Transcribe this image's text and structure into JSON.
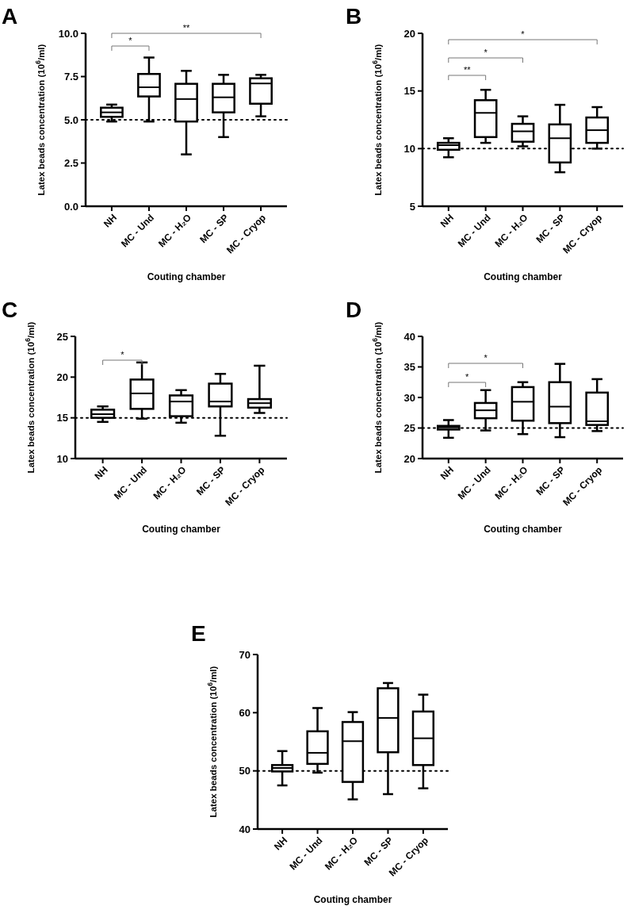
{
  "chart_data": [
    {
      "type": "box",
      "title": "A",
      "xlabel": "Couting chamber",
      "ylabel": "Latex beads concentration (10$^{6}$/ml)",
      "categories": [
        "NH",
        "MC - Und",
        "MC - H₂O",
        "MC - SP",
        "MC - Cryop"
      ],
      "ylim": [
        0,
        10
      ],
      "yticks": [
        {
          "value": 0,
          "label": "0.0"
        },
        2.5,
        {
          "value": 5,
          "label": "5.0"
        },
        7.5,
        {
          "value": 10,
          "label": "10.0"
        }
      ],
      "boxes": [
        {
          "low": 4.9,
          "q1": 5.17,
          "median": 5.43,
          "q3": 5.7,
          "high": 5.88
        },
        {
          "low": 4.9,
          "q1": 6.35,
          "median": 6.88,
          "q3": 7.65,
          "high": 8.6
        },
        {
          "low": 3.0,
          "q1": 4.9,
          "median": 6.2,
          "q3": 7.08,
          "high": 7.83
        },
        {
          "low": 4.0,
          "q1": 5.43,
          "median": 6.3,
          "q3": 7.08,
          "high": 7.6
        },
        {
          "low": 5.2,
          "q1": 5.93,
          "median": 7.1,
          "q3": 7.4,
          "high": 7.6
        }
      ],
      "ref_lines": [
        {
          "axis": "y",
          "value": 5,
          "color": "#000000",
          "line_style": "dotted"
        }
      ],
      "annotations": [
        "*",
        "**"
      ]
    },
    {
      "type": "box",
      "title": "B",
      "xlabel": "Couting chamber",
      "ylabel": "Latex beads concentration (10$^{6}$/ml)",
      "categories": [
        "NH",
        "MC - Und",
        "MC - H₂O",
        "MC - SP",
        "MC - Cryop"
      ],
      "ylim": [
        5,
        20
      ],
      "yticks": [
        5,
        10,
        15,
        20
      ],
      "boxes": [
        {
          "low": 9.25,
          "q1": 9.9,
          "median": 10.3,
          "q3": 10.5,
          "high": 10.9
        },
        {
          "low": 10.5,
          "q1": 11.0,
          "median": 13.1,
          "q3": 14.2,
          "high": 15.1
        },
        {
          "low": 10.2,
          "q1": 10.6,
          "median": 11.5,
          "q3": 12.15,
          "high": 12.8
        },
        {
          "low": 7.95,
          "q1": 8.8,
          "median": 10.9,
          "q3": 12.1,
          "high": 13.8
        },
        {
          "low": 10.0,
          "q1": 10.5,
          "median": 11.6,
          "q3": 12.7,
          "high": 13.6
        }
      ],
      "ref_lines": [
        {
          "axis": "y",
          "value": 10,
          "color": "#000000",
          "line_style": "dotted"
        }
      ],
      "annotations": [
        "**",
        "*",
        "*"
      ]
    },
    {
      "type": "box",
      "title": "C",
      "xlabel": "Couting chamber",
      "ylabel": "Latex beads concentration (10$^{6}$/ml)",
      "categories": [
        "NH",
        "MC - Und",
        "MC - H₂O",
        "MC - SP",
        "MC - Cryop"
      ],
      "ylim": [
        10,
        25
      ],
      "yticks": [
        10,
        15,
        20,
        25
      ],
      "boxes": [
        {
          "low": 14.5,
          "q1": 15.0,
          "median": 15.45,
          "q3": 16.0,
          "high": 16.4
        },
        {
          "low": 14.9,
          "q1": 16.1,
          "median": 18.0,
          "q3": 19.7,
          "high": 21.8
        },
        {
          "low": 14.4,
          "q1": 15.2,
          "median": 17.0,
          "q3": 17.75,
          "high": 18.4
        },
        {
          "low": 12.8,
          "q1": 16.4,
          "median": 17.0,
          "q3": 19.2,
          "high": 20.4
        },
        {
          "low": 15.6,
          "q1": 16.25,
          "median": 16.8,
          "q3": 17.3,
          "high": 21.4
        }
      ],
      "ref_lines": [
        {
          "axis": "y",
          "value": 15,
          "color": "#000000",
          "line_style": "dotted"
        }
      ],
      "annotations": [
        "*"
      ]
    },
    {
      "type": "box",
      "title": "D",
      "xlabel": "Couting chamber",
      "ylabel": "Latex beads concentration (10$^{6}$/ml)",
      "categories": [
        "NH",
        "MC - Und",
        "MC - H₂O",
        "MC - SP",
        "MC - Cryop"
      ],
      "ylim": [
        20,
        40
      ],
      "yticks": [
        20,
        25,
        30,
        35,
        40
      ],
      "boxes": [
        {
          "low": 23.4,
          "q1": 24.75,
          "median": 25.1,
          "q3": 25.35,
          "high": 26.3
        },
        {
          "low": 24.6,
          "q1": 26.6,
          "median": 27.9,
          "q3": 29.1,
          "high": 31.2
        },
        {
          "low": 24.0,
          "q1": 26.2,
          "median": 29.3,
          "q3": 31.7,
          "high": 32.5
        },
        {
          "low": 23.5,
          "q1": 25.8,
          "median": 28.5,
          "q3": 32.5,
          "high": 35.5
        },
        {
          "low": 24.5,
          "q1": 25.5,
          "median": 26.1,
          "q3": 30.8,
          "high": 33.0
        }
      ],
      "ref_lines": [
        {
          "axis": "y",
          "value": 25,
          "color": "#000000",
          "line_style": "dotted"
        }
      ],
      "annotations": [
        "*",
        "*"
      ]
    },
    {
      "type": "box",
      "title": "E",
      "xlabel": "Couting chamber",
      "ylabel": "Latex beads concentration (10$^{6}$/ml)",
      "categories": [
        "NH",
        "MC - Und",
        "MC - H₂O",
        "MC - SP",
        "MC - Cryop"
      ],
      "ylim": [
        40,
        70
      ],
      "yticks": [
        40,
        50,
        60,
        70
      ],
      "boxes": [
        {
          "low": 47.5,
          "q1": 49.9,
          "median": 50.5,
          "q3": 51.0,
          "high": 53.4
        },
        {
          "low": 49.7,
          "q1": 51.2,
          "median": 53.1,
          "q3": 56.8,
          "high": 60.8
        },
        {
          "low": 45.1,
          "q1": 48.1,
          "median": 55.1,
          "q3": 58.4,
          "high": 60.1
        },
        {
          "low": 46.0,
          "q1": 53.2,
          "median": 59.1,
          "q3": 64.2,
          "high": 65.1
        },
        {
          "low": 47.0,
          "q1": 51.0,
          "median": 55.6,
          "q3": 60.2,
          "high": 63.1
        }
      ],
      "ref_lines": [
        {
          "axis": "y",
          "value": 50,
          "color": "#000000",
          "line_style": "dotted"
        }
      ]
    }
  ]
}
